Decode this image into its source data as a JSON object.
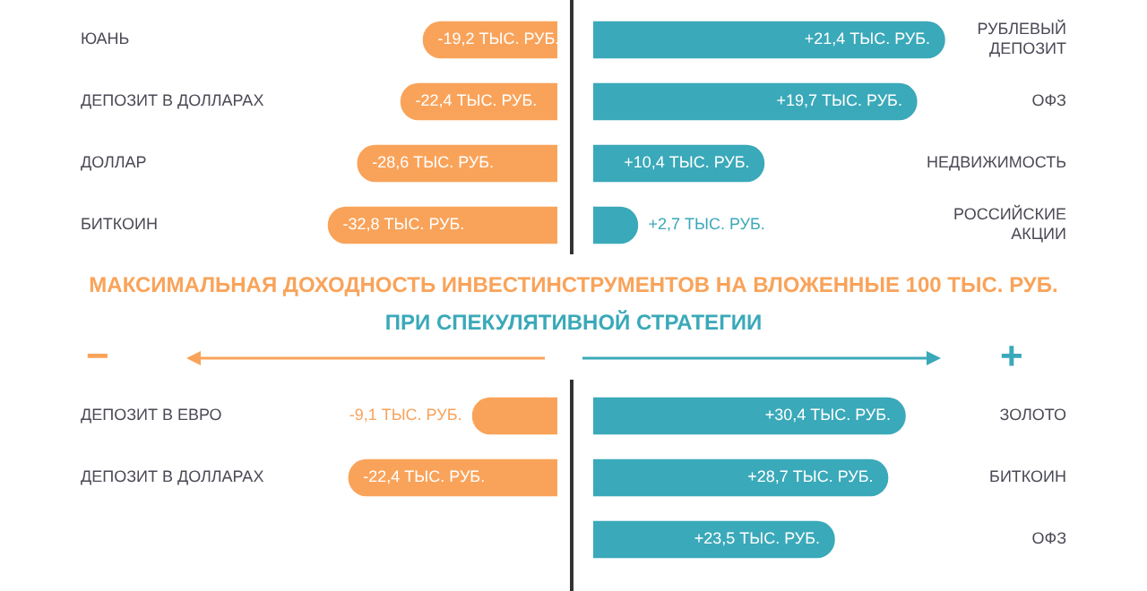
{
  "chart_data": [
    {
      "type": "bar",
      "orientation": "horizontal",
      "categories": [
        "ЮАНЬ",
        "ДЕПОЗИТ В ДОЛЛАРАХ",
        "ДОЛЛАР",
        "БИТКОИН"
      ],
      "values": [
        -19.2,
        -22.4,
        -28.6,
        -32.8
      ],
      "color": "#f9a35a",
      "value_labels": [
        "-19,2 ТЫС. РУБ.",
        "-22,4 ТЫС. РУБ.",
        "-28,6 ТЫС. РУБ.",
        "-32,8 ТЫС. РУБ."
      ],
      "tick_labels": "y"
    },
    {
      "type": "bar",
      "orientation": "horizontal",
      "categories": [
        "РУБЛЕВЫЙ ДЕПОЗИТ",
        "ОФЗ",
        "НЕДВИЖИМОСТЬ",
        "РОССИЙСКИЕ АКЦИИ"
      ],
      "values": [
        21.4,
        19.7,
        10.4,
        2.7
      ],
      "color": "#3aa9b9",
      "value_labels": [
        "+21,4 ТЫС. РУБ.",
        "+19,7 ТЫС. РУБ.",
        "+10,4 ТЫС. РУБ.",
        "+2,7 ТЫС. РУБ."
      ],
      "tick_labels": "y"
    },
    {
      "type": "bar",
      "orientation": "horizontal",
      "title": "МАКСИМАЛЬНАЯ ДОХОДНОСТЬ ИНВЕСТИНСТРУМЕНТОВ НА ВЛОЖЕННЫЕ 100 ТЫС. РУБ.",
      "subtitle": "ПРИ СПЕКУЛЯТИВНОЙ СТРАТЕГИИ",
      "annotations": [
        "−"
      ],
      "categories": [
        "ДЕПОЗИТ В ЕВРО",
        "ДЕПОЗИТ В ДОЛЛАРАХ"
      ],
      "values": [
        -9.1,
        -22.4
      ],
      "color": "#f9a35a",
      "value_labels": [
        "-9,1 ТЫС. РУБ.",
        "-22,4 ТЫС. РУБ."
      ],
      "tick_labels": "y"
    },
    {
      "type": "bar",
      "orientation": "horizontal",
      "annotations": [
        "+"
      ],
      "categories": [
        "ЗОЛОТО",
        "БИТКОИН",
        "ОФЗ"
      ],
      "values": [
        30.4,
        28.7,
        23.5
      ],
      "color": "#3aa9b9",
      "value_labels": [
        "+30,4 ТЫС. РУБ.",
        "+28,7 ТЫС. РУБ.",
        "+23,5 ТЫС. РУБ."
      ],
      "tick_labels": "y"
    }
  ]
}
